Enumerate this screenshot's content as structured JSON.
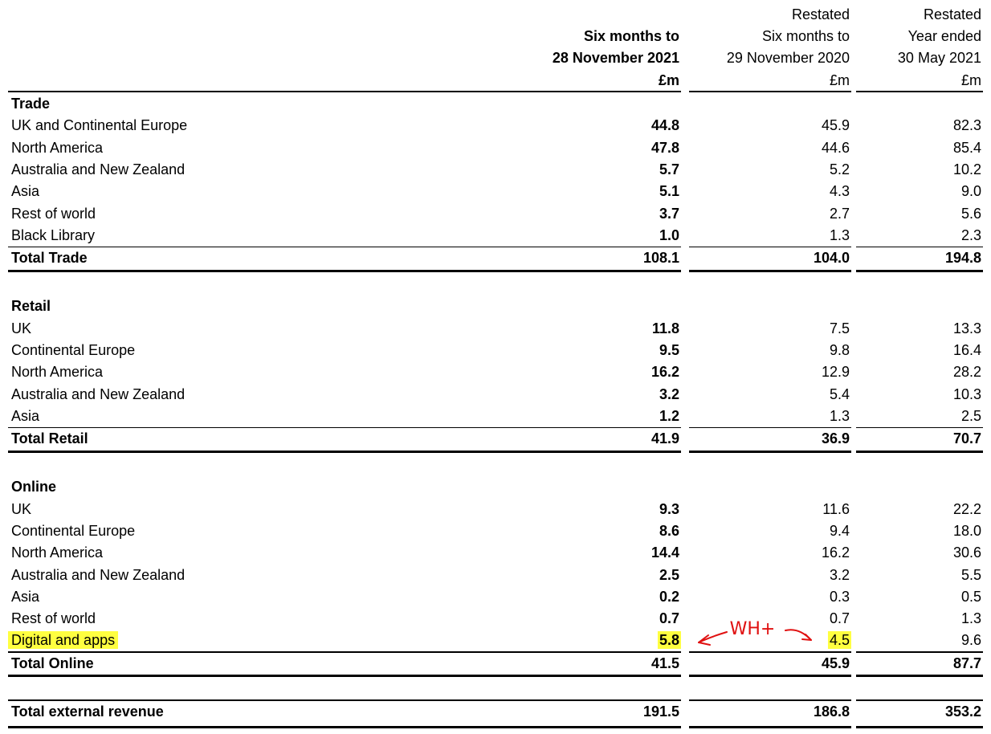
{
  "header": {
    "columns": [
      {
        "lines": [
          "Six months to",
          "28 November 2021"
        ],
        "unit": "£m"
      },
      {
        "lines": [
          "Restated",
          "Six months to",
          "29 November 2020"
        ],
        "unit": "£m"
      },
      {
        "lines": [
          "Restated",
          "Year ended",
          "30 May 2021"
        ],
        "unit": "£m"
      }
    ]
  },
  "sections": [
    {
      "title": "Trade",
      "rows": [
        {
          "label": "UK and Continental Europe",
          "values": [
            "44.8",
            "45.9",
            "82.3"
          ]
        },
        {
          "label": "North America",
          "values": [
            "47.8",
            "44.6",
            "85.4"
          ]
        },
        {
          "label": "Australia and New Zealand",
          "values": [
            "5.7",
            "5.2",
            "10.2"
          ]
        },
        {
          "label": "Asia",
          "values": [
            "5.1",
            "4.3",
            "9.0"
          ]
        },
        {
          "label": "Rest of world",
          "values": [
            "3.7",
            "2.7",
            "5.6"
          ]
        },
        {
          "label": "Black Library",
          "values": [
            "1.0",
            "1.3",
            "2.3"
          ]
        }
      ],
      "total": {
        "label": "Total Trade",
        "values": [
          "108.1",
          "104.0",
          "194.8"
        ]
      }
    },
    {
      "title": "Retail",
      "rows": [
        {
          "label": "UK",
          "values": [
            "11.8",
            "7.5",
            "13.3"
          ]
        },
        {
          "label": "Continental Europe",
          "values": [
            "9.5",
            "9.8",
            "16.4"
          ]
        },
        {
          "label": "North America",
          "values": [
            "16.2",
            "12.9",
            "28.2"
          ]
        },
        {
          "label": "Australia and New Zealand",
          "values": [
            "3.2",
            "5.4",
            "10.3"
          ]
        },
        {
          "label": "Asia",
          "values": [
            "1.2",
            "1.3",
            "2.5"
          ]
        }
      ],
      "total": {
        "label": "Total Retail",
        "values": [
          "41.9",
          "36.9",
          "70.7"
        ]
      }
    },
    {
      "title": "Online",
      "rows": [
        {
          "label": "UK",
          "values": [
            "9.3",
            "11.6",
            "22.2"
          ]
        },
        {
          "label": "Continental Europe",
          "values": [
            "8.6",
            "9.4",
            "18.0"
          ]
        },
        {
          "label": "North America",
          "values": [
            "14.4",
            "16.2",
            "30.6"
          ]
        },
        {
          "label": "Australia and New Zealand",
          "values": [
            "2.5",
            "3.2",
            "5.5"
          ]
        },
        {
          "label": "Asia",
          "values": [
            "0.2",
            "0.3",
            "0.5"
          ]
        },
        {
          "label": "Rest of world",
          "values": [
            "0.7",
            "0.7",
            "1.3"
          ]
        },
        {
          "label": "Digital and apps",
          "values": [
            "5.8",
            "4.5",
            "9.6"
          ],
          "highlight": true
        }
      ],
      "total": {
        "label": "Total Online",
        "values": [
          "41.5",
          "45.9",
          "87.7"
        ]
      }
    }
  ],
  "grand_total": {
    "label": "Total external revenue",
    "values": [
      "191.5",
      "186.8",
      "353.2"
    ]
  },
  "annotation": "WH+"
}
